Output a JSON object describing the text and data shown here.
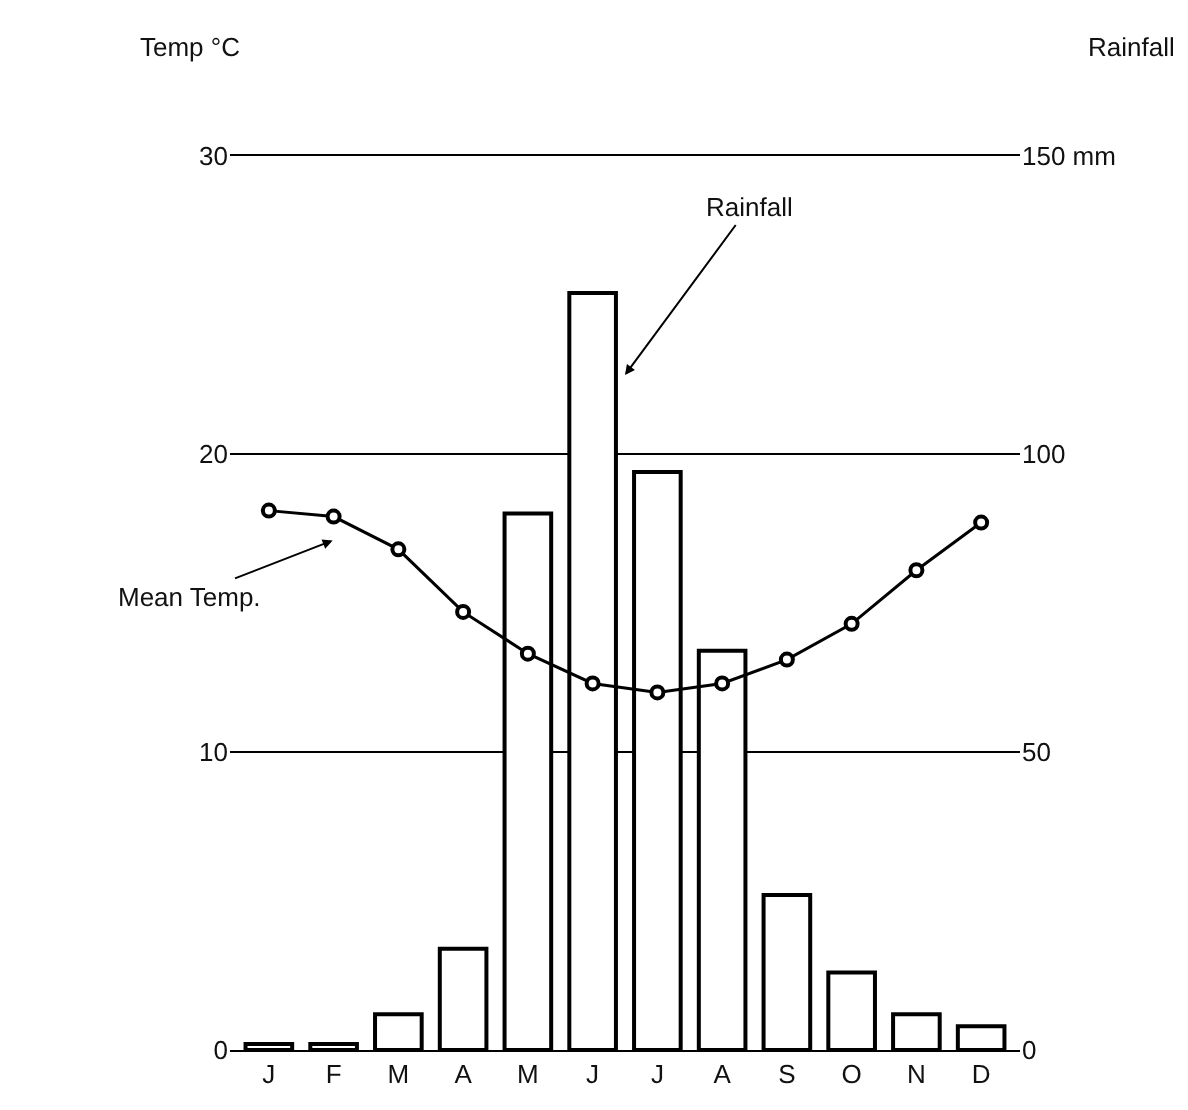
{
  "chart_data": {
    "type": "bar",
    "ylabel": "Temp °C",
    "y2label": "Rainfall",
    "categories": [
      "J",
      "F",
      "M",
      "A",
      "M",
      "J",
      "J",
      "A",
      "S",
      "O",
      "N",
      "D"
    ],
    "series": [
      {
        "axis": "y2",
        "color": "#ffffff",
        "values": [
          1,
          1,
          6,
          17,
          90,
          127,
          97,
          67,
          26,
          13,
          6,
          4
        ]
      },
      {
        "type": "line",
        "axis": "y",
        "color": "#000000",
        "marker": "circle",
        "values": [
          18.1,
          17.9,
          16.8,
          14.7,
          13.3,
          12.3,
          12.0,
          12.3,
          13.1,
          14.3,
          16.1,
          17.7
        ]
      }
    ],
    "ylim": [
      0,
      30
    ],
    "yticks": [
      0,
      10,
      20,
      30
    ],
    "y2lim": [
      0,
      150
    ],
    "y2ticks": [
      0,
      50,
      100,
      {
        "value": 150,
        "label": "150 mm"
      }
    ],
    "grid": "y",
    "annotations": [
      "Rainfall",
      "Mean Temp."
    ]
  }
}
